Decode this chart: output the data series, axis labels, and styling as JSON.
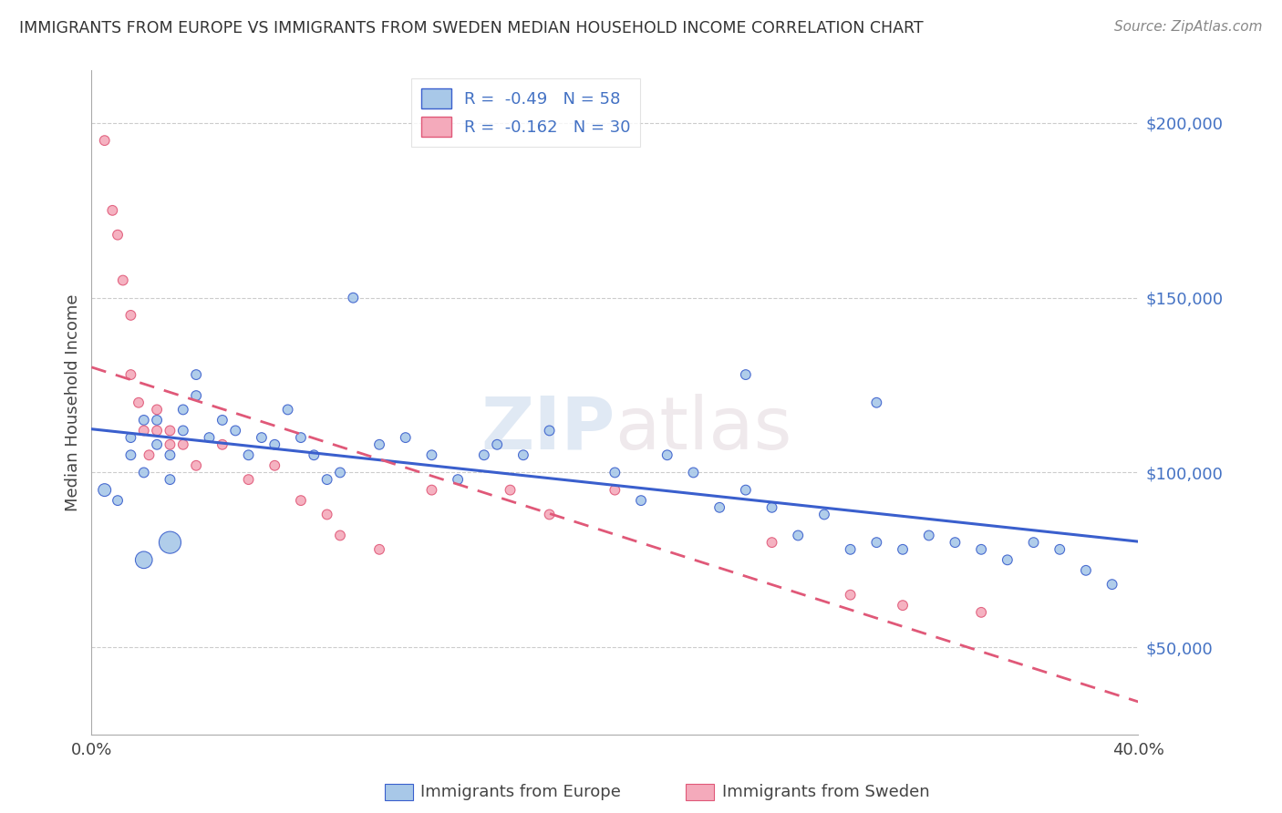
{
  "title": "IMMIGRANTS FROM EUROPE VS IMMIGRANTS FROM SWEDEN MEDIAN HOUSEHOLD INCOME CORRELATION CHART",
  "source": "Source: ZipAtlas.com",
  "ylabel": "Median Household Income",
  "legend_label1": "Immigrants from Europe",
  "legend_label2": "Immigrants from Sweden",
  "R1": -0.49,
  "N1": 58,
  "R2": -0.162,
  "N2": 30,
  "color_blue": "#A8C8E8",
  "color_pink": "#F4AABB",
  "color_blue_line": "#3A5FCD",
  "color_pink_line": "#E05878",
  "watermark_zip": "ZIP",
  "watermark_atlas": "atlas",
  "xlim": [
    0.0,
    0.4
  ],
  "ylim": [
    25000,
    215000
  ],
  "x_ticks": [
    0.0,
    0.05,
    0.1,
    0.15,
    0.2,
    0.25,
    0.3,
    0.35,
    0.4
  ],
  "y_ticks": [
    50000,
    100000,
    150000,
    200000
  ],
  "y_tick_labels": [
    "$50,000",
    "$100,000",
    "$150,000",
    "$200,000"
  ],
  "blue_x": [
    0.005,
    0.01,
    0.015,
    0.015,
    0.02,
    0.02,
    0.025,
    0.025,
    0.03,
    0.03,
    0.035,
    0.035,
    0.04,
    0.04,
    0.045,
    0.05,
    0.055,
    0.06,
    0.065,
    0.07,
    0.075,
    0.08,
    0.085,
    0.09,
    0.095,
    0.1,
    0.11,
    0.12,
    0.13,
    0.14,
    0.155,
    0.165,
    0.175,
    0.2,
    0.21,
    0.22,
    0.23,
    0.24,
    0.25,
    0.26,
    0.27,
    0.28,
    0.29,
    0.3,
    0.31,
    0.32,
    0.33,
    0.34,
    0.35,
    0.36,
    0.37,
    0.38,
    0.39,
    0.25,
    0.3,
    0.15,
    0.03,
    0.02
  ],
  "blue_y": [
    95000,
    92000,
    105000,
    110000,
    100000,
    115000,
    108000,
    115000,
    105000,
    98000,
    118000,
    112000,
    122000,
    128000,
    110000,
    115000,
    112000,
    105000,
    110000,
    108000,
    118000,
    110000,
    105000,
    98000,
    100000,
    150000,
    108000,
    110000,
    105000,
    98000,
    108000,
    105000,
    112000,
    100000,
    92000,
    105000,
    100000,
    90000,
    95000,
    90000,
    82000,
    88000,
    78000,
    80000,
    78000,
    82000,
    80000,
    78000,
    75000,
    80000,
    78000,
    72000,
    68000,
    128000,
    120000,
    105000,
    80000,
    75000
  ],
  "blue_size": [
    100,
    60,
    60,
    60,
    60,
    60,
    60,
    60,
    60,
    60,
    60,
    60,
    60,
    60,
    60,
    60,
    60,
    60,
    60,
    60,
    60,
    60,
    60,
    60,
    60,
    60,
    60,
    60,
    60,
    60,
    60,
    60,
    60,
    60,
    60,
    60,
    60,
    60,
    60,
    60,
    60,
    60,
    60,
    60,
    60,
    60,
    60,
    60,
    60,
    60,
    60,
    60,
    60,
    60,
    60,
    60,
    300,
    180
  ],
  "pink_x": [
    0.005,
    0.008,
    0.01,
    0.012,
    0.015,
    0.015,
    0.018,
    0.02,
    0.022,
    0.025,
    0.025,
    0.03,
    0.03,
    0.035,
    0.04,
    0.05,
    0.06,
    0.07,
    0.08,
    0.09,
    0.095,
    0.11,
    0.13,
    0.16,
    0.175,
    0.2,
    0.26,
    0.29,
    0.31,
    0.34
  ],
  "pink_y": [
    195000,
    175000,
    168000,
    155000,
    145000,
    128000,
    120000,
    112000,
    105000,
    112000,
    118000,
    112000,
    108000,
    108000,
    102000,
    108000,
    98000,
    102000,
    92000,
    88000,
    82000,
    78000,
    95000,
    95000,
    88000,
    95000,
    80000,
    65000,
    62000,
    60000
  ],
  "pink_size": [
    60,
    60,
    60,
    60,
    60,
    60,
    60,
    60,
    60,
    60,
    60,
    60,
    60,
    60,
    60,
    60,
    60,
    60,
    60,
    60,
    60,
    60,
    60,
    60,
    60,
    60,
    60,
    60,
    60,
    60
  ]
}
